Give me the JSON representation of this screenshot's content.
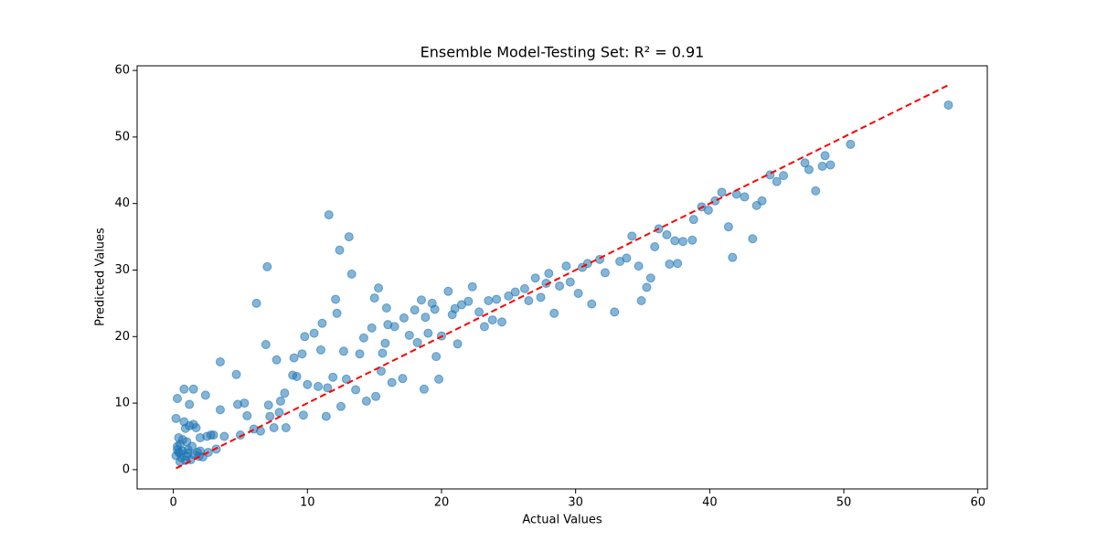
{
  "chart_data": {
    "type": "scatter",
    "title": "Ensemble Model-Testing Set: R² = 0.91",
    "x_label": "Actual Values",
    "y_label": "Predicted Values",
    "color": "#1f77b4",
    "x": [
      0.2,
      0.3,
      0.3,
      0.4,
      0.5,
      0.5,
      0.6,
      0.7,
      0.8,
      0.8,
      0.9,
      1.0,
      1.1,
      1.2,
      1.2,
      1.3,
      1.5,
      1.5,
      1.6,
      1.7,
      1.8,
      2.0,
      2.2,
      2.4,
      2.5,
      2.6,
      2.8,
      3.0,
      3.2,
      0.2,
      0.3,
      0.5,
      0.7,
      1.0,
      1.4,
      2.0,
      0.4,
      0.9,
      1.1,
      1.9,
      3.5,
      3.5,
      3.8,
      4.7,
      4.8,
      5.0,
      5.3,
      5.5,
      6.0,
      6.2,
      6.5,
      6.9,
      7.0,
      7.1,
      7.2,
      7.5,
      7.7,
      7.9,
      8.0,
      8.3,
      8.4,
      8.9,
      9.0,
      9.2,
      9.6,
      9.7,
      9.8,
      10.0,
      10.5,
      10.8,
      11.0,
      11.1,
      11.4,
      11.5,
      11.6,
      11.9,
      12.1,
      12.2,
      12.4,
      12.5,
      12.7,
      12.9,
      13.1,
      13.3,
      13.6,
      13.9,
      14.2,
      14.4,
      14.8,
      15.0,
      15.1,
      15.3,
      15.5,
      15.6,
      15.8,
      15.9,
      16.0,
      16.3,
      16.5,
      17.1,
      17.2,
      17.6,
      18.0,
      18.2,
      18.5,
      18.7,
      18.8,
      19.0,
      19.3,
      19.5,
      19.6,
      19.8,
      20.0,
      20.5,
      20.8,
      21.0,
      21.2,
      21.5,
      22.0,
      22.3,
      22.8,
      23.2,
      23.5,
      23.8,
      24.1,
      24.5,
      25.0,
      25.5,
      26.2,
      26.5,
      27.0,
      27.4,
      27.8,
      28.0,
      28.4,
      28.8,
      29.3,
      29.6,
      30.2,
      30.5,
      30.9,
      31.2,
      31.8,
      32.2,
      32.9,
      33.3,
      33.8,
      34.2,
      34.7,
      34.9,
      35.3,
      35.6,
      35.9,
      36.2,
      36.8,
      37.0,
      37.4,
      37.6,
      38.0,
      38.7,
      38.8,
      39.4,
      39.9,
      40.4,
      40.9,
      41.4,
      41.7,
      42.0,
      42.6,
      43.2,
      43.5,
      43.9,
      44.5,
      45.0,
      45.5,
      47.1,
      47.4,
      47.9,
      48.4,
      48.6,
      49.0,
      50.5,
      57.8
    ],
    "values": [
      7.7,
      10.7,
      3.5,
      4.8,
      2.5,
      3.8,
      1.8,
      2.8,
      12.1,
      7.2,
      6.2,
      4.2,
      3.0,
      9.8,
      6.6,
      1.5,
      12.1,
      6.8,
      2.2,
      6.3,
      2.6,
      4.8,
      1.9,
      11.2,
      5.0,
      2.6,
      5.2,
      5.2,
      3.1,
      2.1,
      3.0,
      1.2,
      4.5,
      2.0,
      3.5,
      2.8,
      2.6,
      1.4,
      2.5,
      2.0,
      16.2,
      9.0,
      5.0,
      14.3,
      9.8,
      5.2,
      10.0,
      8.1,
      6.1,
      25.0,
      5.8,
      18.8,
      30.5,
      9.7,
      8.0,
      6.3,
      16.5,
      8.6,
      10.3,
      11.5,
      6.3,
      14.2,
      16.8,
      14.0,
      17.4,
      8.2,
      20.0,
      12.8,
      20.5,
      12.5,
      18.0,
      22.0,
      8.0,
      12.3,
      38.3,
      13.9,
      25.6,
      23.5,
      33.0,
      9.5,
      17.8,
      13.6,
      35.0,
      29.4,
      12.0,
      17.4,
      19.8,
      10.3,
      21.3,
      25.8,
      11.0,
      27.3,
      14.8,
      17.5,
      19.0,
      24.3,
      21.8,
      13.1,
      21.5,
      13.7,
      22.8,
      20.2,
      24.0,
      19.1,
      25.5,
      12.1,
      22.9,
      20.5,
      25.0,
      24.1,
      17.0,
      13.6,
      20.1,
      26.8,
      23.3,
      24.2,
      18.9,
      24.8,
      25.3,
      27.5,
      23.7,
      21.5,
      25.4,
      22.5,
      25.6,
      22.2,
      26.1,
      26.7,
      27.2,
      25.4,
      28.8,
      25.9,
      28.0,
      29.5,
      23.5,
      27.6,
      30.6,
      28.2,
      26.5,
      30.4,
      31.0,
      24.9,
      31.6,
      29.6,
      23.7,
      31.3,
      31.8,
      35.1,
      30.6,
      25.4,
      27.4,
      28.8,
      33.5,
      36.2,
      35.3,
      30.9,
      34.4,
      31.0,
      34.3,
      34.5,
      37.6,
      39.5,
      39.0,
      40.4,
      41.7,
      36.5,
      31.9,
      41.4,
      41.0,
      34.7,
      39.7,
      40.4,
      44.3,
      43.3,
      44.2,
      46.1,
      45.1,
      41.9,
      45.6,
      47.2,
      45.8,
      48.9,
      54.8
    ],
    "reference_line": {
      "x": [
        0.2,
        57.8
      ],
      "y": [
        0.2,
        57.8
      ],
      "color": "#ff0000"
    },
    "xlim": [
      -2.7,
      60.7
    ],
    "ylim": [
      -2.9,
      60.7
    ],
    "xticks": [
      0,
      10,
      20,
      30,
      40,
      50,
      60
    ],
    "yticks": [
      0,
      10,
      20,
      30,
      40,
      50,
      60
    ]
  }
}
